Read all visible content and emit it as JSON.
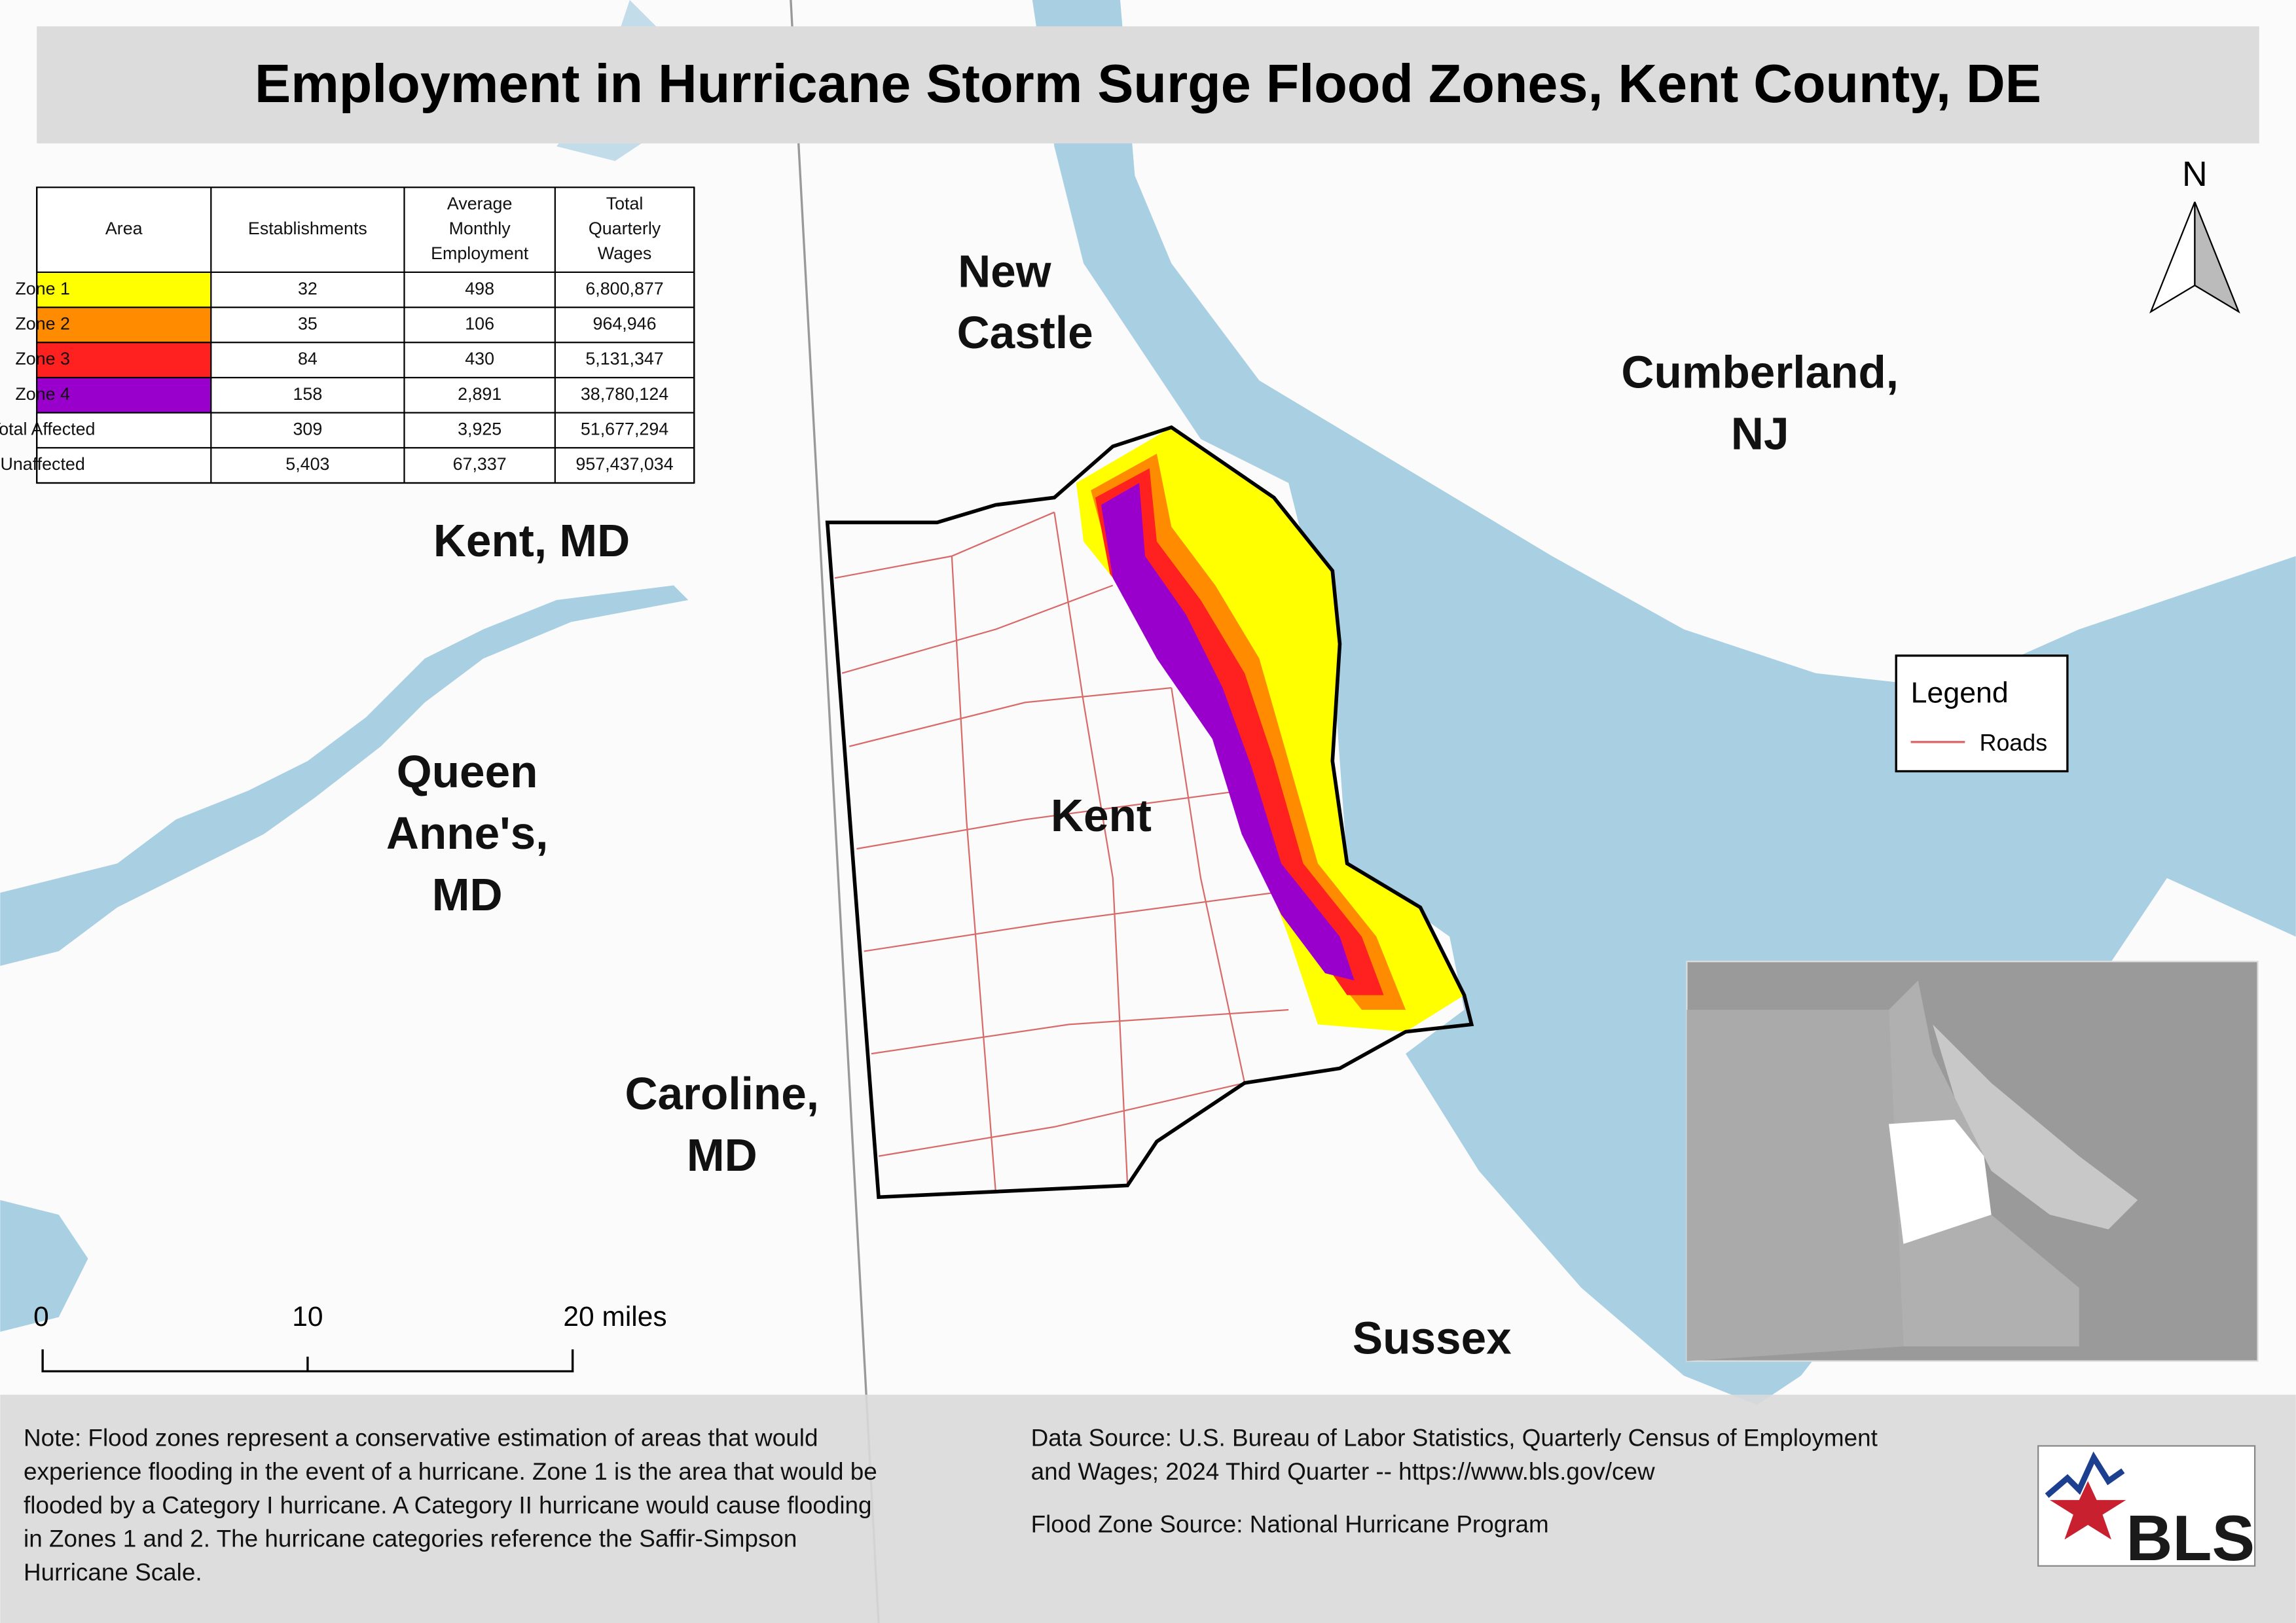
{
  "header": {
    "title": "Employment in Hurricane Storm Surge Flood Zones, Kent County, DE"
  },
  "table": {
    "columns": [
      [
        "Area"
      ],
      [
        "Establishments"
      ],
      [
        "Average",
        "Monthly",
        "Employment"
      ],
      [
        "Total",
        "Quarterly",
        "Wages"
      ]
    ],
    "rows": [
      [
        "Zone 1",
        "32",
        "498",
        "6,800,877"
      ],
      [
        "Zone 2",
        "35",
        "106",
        "964,946"
      ],
      [
        "Zone 3",
        "84",
        "430",
        "5,131,347"
      ],
      [
        "Zone 4",
        "158",
        "2,891",
        "38,780,124"
      ],
      [
        "Total Affected",
        "309",
        "3,925",
        "51,677,294"
      ],
      [
        "Unaffected",
        "5,403",
        "67,337",
        "957,437,034"
      ]
    ],
    "zone_colors": [
      "#ffff00",
      "#ff8c00",
      "#ff2020",
      "#9900cc"
    ]
  },
  "map_labels": {
    "new_castle": [
      "New",
      "Castle"
    ],
    "cumberland": [
      "Cumberland,",
      "NJ"
    ],
    "kent_md": [
      "Kent, MD"
    ],
    "queen_annes": [
      "Queen",
      "Anne's,",
      "MD"
    ],
    "kent": [
      "Kent"
    ],
    "caroline": [
      "Caroline,",
      "MD"
    ],
    "sussex": [
      "Sussex"
    ]
  },
  "legend": {
    "title": "Legend",
    "items": [
      "Roads"
    ]
  },
  "north_arrow": "N",
  "scale_bar": [
    "0",
    "10",
    "20 miles"
  ],
  "note": [
    "Note: Flood zones represent a conservative estimation of areas that would",
    "experience flooding in the event of a hurricane. Zone 1 is the area that would be",
    "flooded by a Category I hurricane. A Category II hurricane would cause flooding",
    "in Zones 1 and 2. The hurricane categories reference the Saffir-Simpson",
    "Hurricane Scale."
  ],
  "sources": [
    "Data Source: U.S. Bureau of Labor Statistics, Quarterly Census of Employment",
    "and Wages; 2024 Third Quarter -- https://www.bls.gov/cew",
    "Flood Zone Source: National Hurricane Program"
  ],
  "logo": "BLS"
}
